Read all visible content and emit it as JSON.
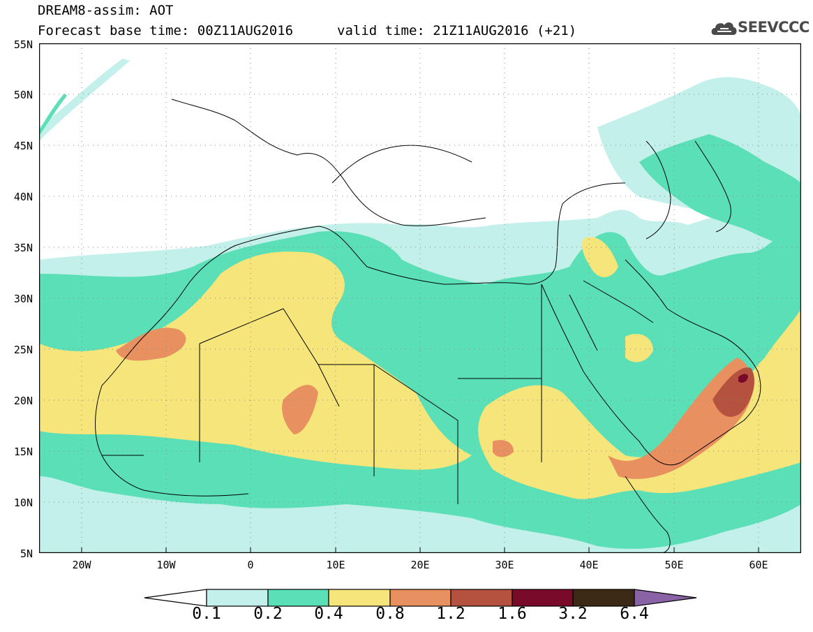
{
  "header": {
    "line1": "DREAM8-assim: AOT",
    "line2": "Forecast base time: 00Z11AUG2016",
    "line3": "valid time: 21Z11AUG2016 (+21)"
  },
  "logo": {
    "text": "SEEVCCC",
    "icon": "cloud-icon"
  },
  "map": {
    "lat_labels": [
      "55N",
      "50N",
      "45N",
      "40N",
      "35N",
      "30N",
      "25N",
      "20N",
      "15N",
      "10N",
      "5N"
    ],
    "lon_labels": [
      "20W",
      "10W",
      "0",
      "10E",
      "20E",
      "30E",
      "40E",
      "50E",
      "60E"
    ],
    "lon_range": [
      -25,
      65
    ],
    "lat_range": [
      5,
      55
    ],
    "grid": "dotted"
  },
  "colorbar": {
    "levels": [
      "0.1",
      "0.2",
      "0.4",
      "0.8",
      "1.2",
      "1.6",
      "3.2",
      "6.4"
    ],
    "colors": [
      "#ffffff",
      "#c3f0ea",
      "#5adfb6",
      "#f5e57a",
      "#e8905f",
      "#b5523f",
      "#7a0a2a",
      "#3d2a16",
      "#8a63a6"
    ]
  }
}
